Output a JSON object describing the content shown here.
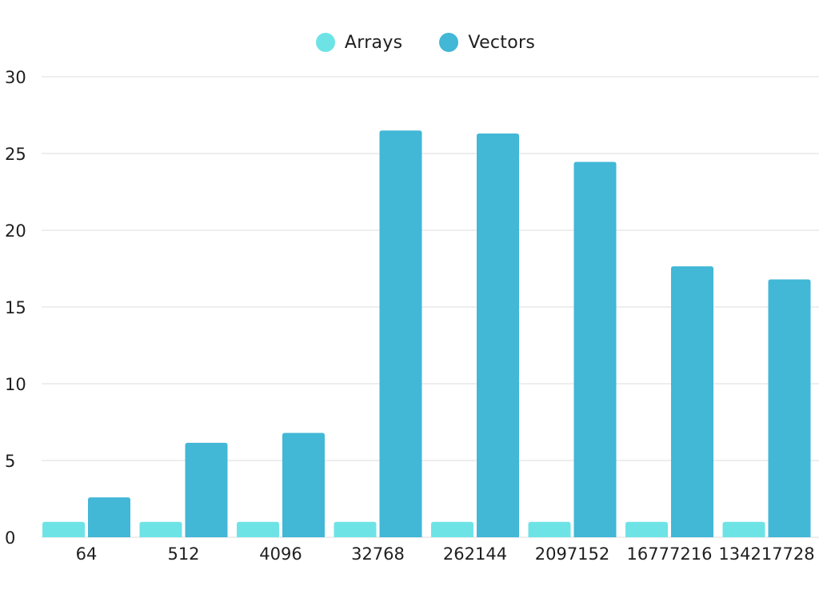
{
  "chart_data": {
    "type": "bar",
    "categories": [
      "64",
      "512",
      "4096",
      "32768",
      "262144",
      "2097152",
      "16777216",
      "134217728"
    ],
    "series": [
      {
        "name": "Arrays",
        "color": "#6EE3E6",
        "values": [
          1,
          1,
          1,
          1,
          1,
          1,
          1,
          1
        ]
      },
      {
        "name": "Vectors",
        "color": "#42B7D6",
        "values": [
          2.6,
          6.15,
          6.8,
          26.5,
          26.3,
          24.45,
          17.65,
          16.8
        ]
      }
    ],
    "ylim": [
      0,
      30
    ],
    "yticks": [
      "0",
      "5",
      "10",
      "15",
      "20",
      "25",
      "30"
    ],
    "grid": true,
    "legend_position": "top-center"
  }
}
